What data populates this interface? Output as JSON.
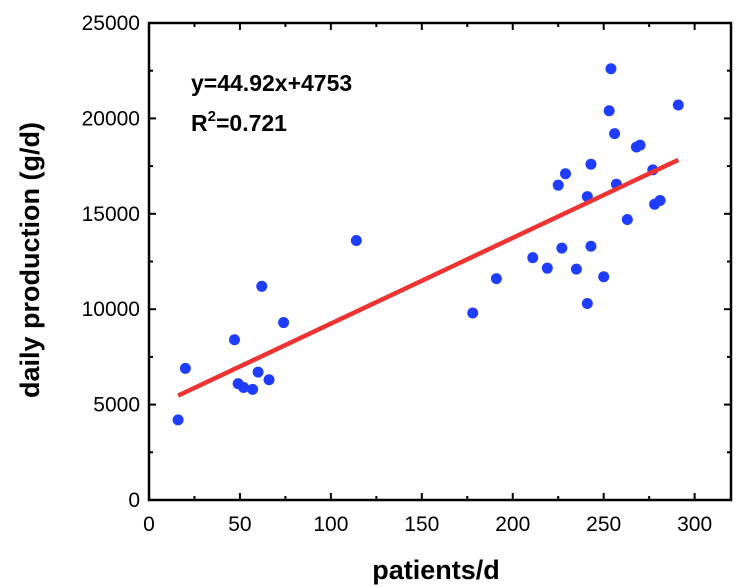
{
  "chart_data": {
    "type": "scatter",
    "xlabel": "patients/d",
    "ylabel": "daily production (g/d)",
    "xlim": [
      0,
      320
    ],
    "ylim": [
      0,
      25000
    ],
    "x_ticks": [
      0,
      50,
      100,
      150,
      200,
      250,
      300
    ],
    "y_ticks": [
      0,
      5000,
      10000,
      15000,
      20000,
      25000
    ],
    "x_tick_labels": [
      "0",
      "50",
      "100",
      "150",
      "200",
      "250",
      "300"
    ],
    "y_tick_labels": [
      "0",
      "5000",
      "10000",
      "15000",
      "20000",
      "25000"
    ],
    "grid": false,
    "point_color": "#1f3dff",
    "fit_color": "#ee3333",
    "points": [
      {
        "x": 16,
        "y": 4200
      },
      {
        "x": 20,
        "y": 6900
      },
      {
        "x": 47,
        "y": 8400
      },
      {
        "x": 49,
        "y": 6100
      },
      {
        "x": 52,
        "y": 5900
      },
      {
        "x": 57,
        "y": 5800
      },
      {
        "x": 60,
        "y": 6700
      },
      {
        "x": 62,
        "y": 11200
      },
      {
        "x": 66,
        "y": 6300
      },
      {
        "x": 74,
        "y": 9300
      },
      {
        "x": 114,
        "y": 13600
      },
      {
        "x": 178,
        "y": 9800
      },
      {
        "x": 191,
        "y": 11600
      },
      {
        "x": 211,
        "y": 12700
      },
      {
        "x": 219,
        "y": 12150
      },
      {
        "x": 225,
        "y": 16500
      },
      {
        "x": 227,
        "y": 13200
      },
      {
        "x": 229,
        "y": 17100
      },
      {
        "x": 235,
        "y": 12100
      },
      {
        "x": 241,
        "y": 10300
      },
      {
        "x": 241,
        "y": 15900
      },
      {
        "x": 243,
        "y": 17600
      },
      {
        "x": 243,
        "y": 13300
      },
      {
        "x": 250,
        "y": 11700
      },
      {
        "x": 253,
        "y": 20400
      },
      {
        "x": 254,
        "y": 22600
      },
      {
        "x": 256,
        "y": 19200
      },
      {
        "x": 257,
        "y": 16550
      },
      {
        "x": 263,
        "y": 14700
      },
      {
        "x": 268,
        "y": 18500
      },
      {
        "x": 270,
        "y": 18600
      },
      {
        "x": 277,
        "y": 17300
      },
      {
        "x": 278,
        "y": 15500
      },
      {
        "x": 281,
        "y": 15700
      },
      {
        "x": 291,
        "y": 20700
      }
    ],
    "fit_line": {
      "slope": 44.92,
      "intercept": 4753,
      "x_range": [
        16,
        291
      ]
    },
    "annotations": {
      "equation": "y=44.92x+4753",
      "r2_prefix": "R",
      "r2_sup": "2",
      "r2_value": "=0.721"
    }
  }
}
